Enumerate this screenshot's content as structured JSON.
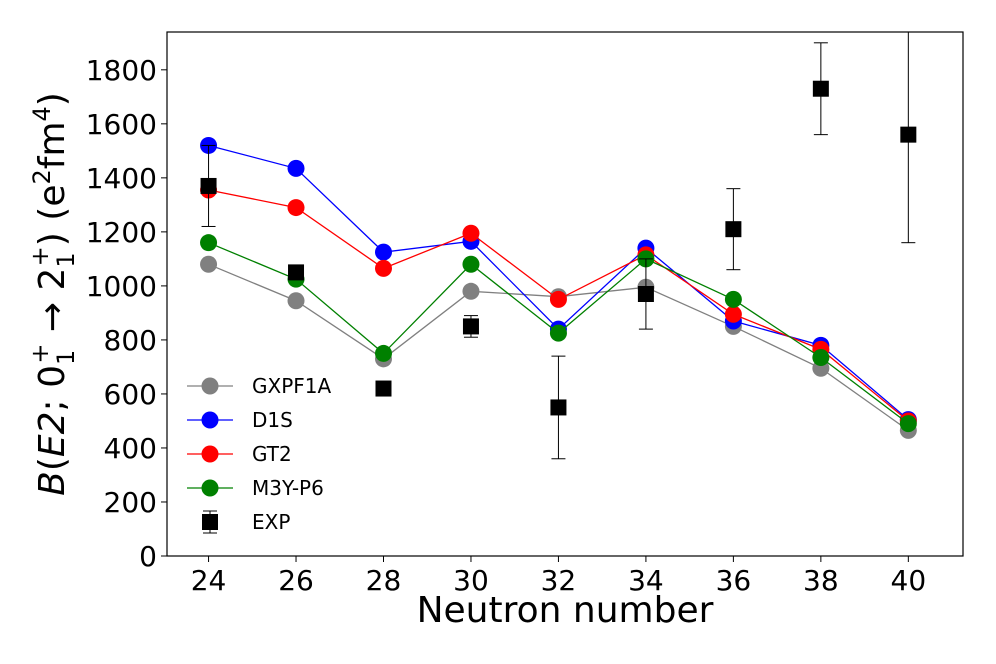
{
  "chart_data": {
    "type": "line",
    "xlabel": "Neutron number",
    "ylabel_parts": {
      "B": "B",
      "open": "(",
      "E2": "E2",
      "semi": "; 0",
      "sub1": "1",
      "sup1": "+",
      "arrow": " → 2",
      "sub2": "1",
      "sup2": "+",
      "close": ") (e",
      "sup_e": "2",
      "fm": "fm",
      "sup_fm": "4",
      "end": ")"
    },
    "xlim": [
      23.05,
      41.25
    ],
    "ylim": [
      0,
      1940
    ],
    "xticks": [
      "24",
      "26",
      "28",
      "30",
      "32",
      "34",
      "36",
      "38",
      "40"
    ],
    "yticks": [
      "0",
      "200",
      "400",
      "600",
      "800",
      "1000",
      "1200",
      "1400",
      "1600",
      "1800"
    ],
    "x": [
      24,
      26,
      28,
      30,
      32,
      34,
      36,
      38,
      40
    ],
    "series": [
      {
        "name": "GXPF1A",
        "color": "#808080",
        "values": [
          1080,
          945,
          730,
          980,
          960,
          995,
          850,
          695,
          465
        ]
      },
      {
        "name": "D1S",
        "color": "#0000ff",
        "values": [
          1520,
          1435,
          1125,
          1165,
          840,
          1140,
          870,
          780,
          505
        ]
      },
      {
        "name": "GT2",
        "color": "#ff0000",
        "values": [
          1355,
          1290,
          1065,
          1195,
          950,
          1115,
          895,
          765,
          500
        ]
      },
      {
        "name": "M3Y-P6",
        "color": "#008000",
        "values": [
          1160,
          1025,
          750,
          1080,
          825,
          1100,
          950,
          735,
          490
        ]
      }
    ],
    "experiment": {
      "name": "EXP",
      "color": "#000000",
      "points": [
        {
          "x": 24,
          "y": 1370,
          "err": 150
        },
        {
          "x": 26,
          "y": 1050,
          "err": 0
        },
        {
          "x": 28,
          "y": 620,
          "err": 0
        },
        {
          "x": 30,
          "y": 850,
          "err": 40
        },
        {
          "x": 32,
          "y": 550,
          "err": 190
        },
        {
          "x": 34,
          "y": 970,
          "err": 130
        },
        {
          "x": 36,
          "y": 1210,
          "err": 150
        },
        {
          "x": 38,
          "y": 1730,
          "err": 170
        },
        {
          "x": 40,
          "y": 1560,
          "err": 400
        }
      ]
    },
    "legend_position": "lower-left"
  }
}
